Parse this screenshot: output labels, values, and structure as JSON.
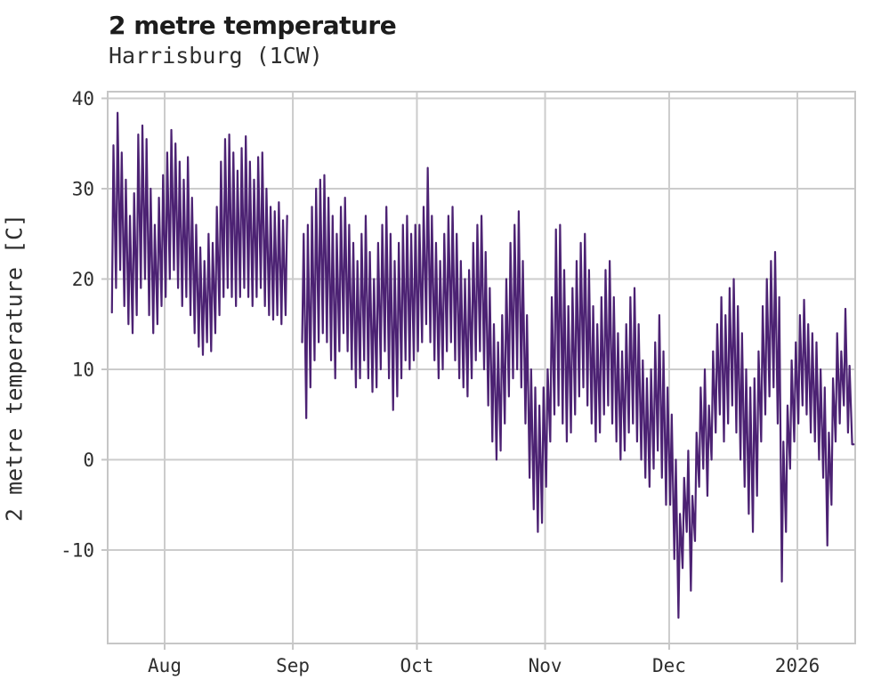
{
  "header": {
    "title": "2 metre temperature",
    "subtitle": "Harrisburg (1CW)"
  },
  "chart_data": {
    "type": "line",
    "title": "2 metre temperature",
    "subtitle": "Harrisburg (1CW)",
    "xlabel": "",
    "ylabel": "2 metre temperature [C]",
    "series_name": "2 metre temperature",
    "line_color": "#4c2273",
    "grid": true,
    "legend": "none",
    "ylim": [
      -20.3,
      40.7
    ],
    "y_ticks": [
      40,
      30,
      20,
      10,
      0,
      -10
    ],
    "x_ticks": [
      {
        "label": "Aug",
        "day": 13
      },
      {
        "label": "Sep",
        "day": 44
      },
      {
        "label": "Oct",
        "day": 74
      },
      {
        "label": "Nov",
        "day": 105
      },
      {
        "label": "Dec",
        "day": 135
      },
      {
        "label": "2026",
        "day": 166
      }
    ],
    "x_range_days": [
      0,
      180
    ],
    "sampling_note": "values are daily [min,max] temperature in C read from the plot; day 0 is 13 days before the Aug tick; null entries are the visible data gap before the Sep tick",
    "daily_min_max": [
      [
        16.3,
        34.8
      ],
      [
        19,
        38.4
      ],
      [
        21,
        34
      ],
      [
        17,
        31
      ],
      [
        15,
        27
      ],
      [
        14,
        29.5
      ],
      [
        16,
        36
      ],
      [
        19,
        37
      ],
      [
        20,
        35.5
      ],
      [
        16,
        30
      ],
      [
        14,
        26
      ],
      [
        15,
        29
      ],
      [
        17,
        31.5
      ],
      [
        18,
        34
      ],
      [
        20,
        36.5
      ],
      [
        21,
        35
      ],
      [
        19,
        33
      ],
      [
        17,
        31
      ],
      [
        18,
        33.5
      ],
      [
        16,
        29
      ],
      [
        14,
        26
      ],
      [
        12.5,
        23.5
      ],
      [
        11.6,
        22
      ],
      [
        13,
        25
      ],
      [
        12,
        24
      ],
      [
        14,
        28
      ],
      [
        16,
        33
      ],
      [
        18,
        35.5
      ],
      [
        19,
        36
      ],
      [
        18,
        34
      ],
      [
        17,
        32
      ],
      [
        18,
        34.5
      ],
      [
        19,
        35.8
      ],
      [
        18,
        33
      ],
      [
        17,
        31
      ],
      [
        18,
        33.5
      ],
      [
        19,
        34
      ],
      [
        17,
        30
      ],
      [
        16,
        28
      ],
      [
        15.5,
        27.5
      ],
      [
        16,
        28.5
      ],
      [
        15,
        26.5
      ],
      [
        16,
        27
      ],
      null,
      null,
      null,
      [
        13,
        25
      ],
      [
        4.6,
        26
      ],
      [
        8,
        28
      ],
      [
        11,
        30
      ],
      [
        13,
        31
      ],
      [
        14,
        31.5
      ],
      [
        13,
        29
      ],
      [
        11,
        27
      ],
      [
        9,
        25
      ],
      [
        12,
        28
      ],
      [
        14,
        29
      ],
      [
        12,
        26
      ],
      [
        10,
        24
      ],
      [
        8,
        22
      ],
      [
        9,
        25
      ],
      [
        11,
        27
      ],
      [
        9,
        23
      ],
      [
        7.5,
        20
      ],
      [
        8,
        24
      ],
      [
        10,
        26
      ],
      [
        12,
        28
      ],
      [
        9,
        25
      ],
      [
        5.5,
        22
      ],
      [
        7,
        24
      ],
      [
        9,
        26
      ],
      [
        11,
        27
      ],
      [
        10,
        25
      ],
      [
        11,
        26
      ],
      [
        12,
        26
      ],
      [
        13,
        28
      ],
      [
        15,
        32.3
      ],
      [
        13,
        27
      ],
      [
        11,
        24
      ],
      [
        9,
        22
      ],
      [
        10,
        25
      ],
      [
        12,
        27
      ],
      [
        13,
        28
      ],
      [
        11,
        25
      ],
      [
        9,
        22
      ],
      [
        8,
        20
      ],
      [
        7,
        21
      ],
      [
        9,
        24
      ],
      [
        11,
        26
      ],
      [
        12,
        27
      ],
      [
        10,
        23
      ],
      [
        6,
        19
      ],
      [
        2,
        15
      ],
      [
        0,
        13
      ],
      [
        1,
        16
      ],
      [
        4,
        20
      ],
      [
        7,
        24
      ],
      [
        9,
        26
      ],
      [
        10,
        27.5
      ],
      [
        8,
        22
      ],
      [
        4,
        16
      ],
      [
        -2,
        10
      ],
      [
        -5.5,
        8
      ],
      [
        -8,
        6
      ],
      [
        -7,
        8
      ],
      [
        -3,
        10
      ],
      [
        2,
        18
      ],
      [
        5,
        25.5
      ],
      [
        6,
        26
      ],
      [
        4,
        21
      ],
      [
        2,
        17
      ],
      [
        3,
        19
      ],
      [
        5,
        22
      ],
      [
        7,
        24
      ],
      [
        8,
        25
      ],
      [
        6,
        21
      ],
      [
        4,
        17
      ],
      [
        2,
        15
      ],
      [
        3,
        18
      ],
      [
        5,
        21
      ],
      [
        6,
        22
      ],
      [
        4,
        18
      ],
      [
        2,
        14
      ],
      [
        0,
        12
      ],
      [
        1,
        15
      ],
      [
        3,
        18
      ],
      [
        4,
        19
      ],
      [
        2,
        15
      ],
      [
        0,
        11
      ],
      [
        -2,
        9
      ],
      [
        -3,
        10
      ],
      [
        -1,
        13
      ],
      [
        1,
        16
      ],
      [
        -2,
        12
      ],
      [
        -5,
        8
      ],
      [
        -5,
        5
      ],
      [
        -11,
        0
      ],
      [
        -17.5,
        -6
      ],
      [
        -12,
        -2
      ],
      [
        -8,
        1
      ],
      [
        -14.5,
        -4
      ],
      [
        -9,
        3
      ],
      [
        -3,
        8
      ],
      [
        -1,
        10
      ],
      [
        -4,
        6
      ],
      [
        0,
        12
      ],
      [
        3,
        15
      ],
      [
        5,
        18
      ],
      [
        2,
        16
      ],
      [
        4,
        19
      ],
      [
        6,
        20
      ],
      [
        3,
        17
      ],
      [
        0,
        14
      ],
      [
        -3,
        10
      ],
      [
        -6,
        8
      ],
      [
        -8,
        9
      ],
      [
        -4,
        12
      ],
      [
        2,
        17
      ],
      [
        5,
        20
      ],
      [
        7,
        22
      ],
      [
        8,
        23
      ],
      [
        4,
        18
      ],
      [
        -13.5,
        2
      ],
      [
        -8,
        6
      ],
      [
        -1,
        11
      ],
      [
        2,
        13
      ],
      [
        4,
        16
      ],
      [
        6,
        17.7
      ],
      [
        5,
        15
      ],
      [
        3,
        14
      ],
      [
        2,
        13
      ],
      [
        0,
        10
      ],
      [
        -2,
        8
      ],
      [
        -9.5,
        3
      ],
      [
        -5,
        9
      ],
      [
        2,
        14
      ],
      [
        4,
        12
      ],
      [
        6,
        16.7
      ],
      [
        3,
        10.4
      ],
      [
        1.7,
        1.7
      ]
    ]
  }
}
